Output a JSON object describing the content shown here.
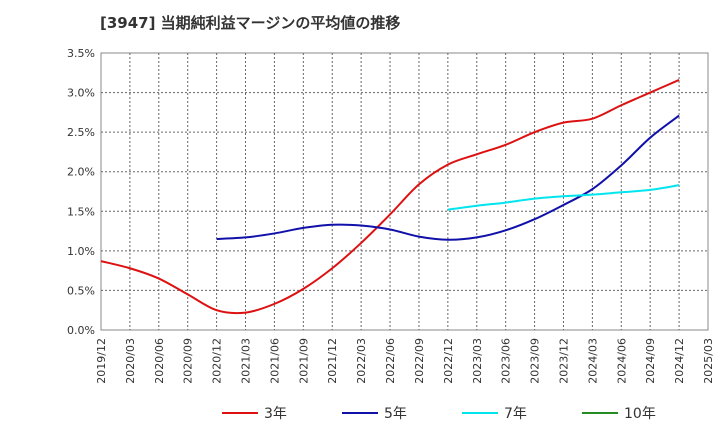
{
  "chart_data": {
    "type": "line",
    "title": "[3947]  当期純利益マージンの平均値の推移",
    "xlabel": "",
    "ylabel": "",
    "ylim": [
      0,
      3.5
    ],
    "y_ticks": [
      "0.0%",
      "0.5%",
      "1.0%",
      "1.5%",
      "2.0%",
      "2.5%",
      "3.0%",
      "3.5%"
    ],
    "x_ticks": [
      "2019/12",
      "2020/03",
      "2020/06",
      "2020/09",
      "2020/12",
      "2021/03",
      "2021/06",
      "2021/09",
      "2021/12",
      "2022/03",
      "2022/06",
      "2022/09",
      "2022/12",
      "2023/03",
      "2023/06",
      "2023/09",
      "2023/12",
      "2024/03",
      "2024/06",
      "2024/09",
      "2024/12",
      "2025/03"
    ],
    "grid": true,
    "legend_position": "bottom",
    "series": [
      {
        "name": "3年",
        "color": "#dd1111",
        "x": [
          "2019/12",
          "2020/03",
          "2020/06",
          "2020/09",
          "2020/12",
          "2021/03",
          "2021/06",
          "2021/09",
          "2021/12",
          "2022/03",
          "2022/06",
          "2022/09",
          "2022/12",
          "2023/03",
          "2023/06",
          "2023/09",
          "2023/12",
          "2024/03",
          "2024/06",
          "2024/09",
          "2024/12"
        ],
        "values": [
          0.87,
          0.78,
          0.65,
          0.45,
          0.25,
          0.22,
          0.33,
          0.52,
          0.78,
          1.1,
          1.46,
          1.84,
          2.09,
          2.22,
          2.34,
          2.5,
          2.62,
          2.67,
          2.84,
          3.0,
          3.16
        ]
      },
      {
        "name": "5年",
        "color": "#1111aa",
        "x": [
          "2020/12",
          "2021/03",
          "2021/06",
          "2021/09",
          "2021/12",
          "2022/03",
          "2022/06",
          "2022/09",
          "2022/12",
          "2023/03",
          "2023/06",
          "2023/09",
          "2023/12",
          "2024/03",
          "2024/06",
          "2024/09",
          "2024/12"
        ],
        "values": [
          1.15,
          1.17,
          1.22,
          1.29,
          1.33,
          1.32,
          1.27,
          1.18,
          1.14,
          1.17,
          1.26,
          1.4,
          1.58,
          1.78,
          2.08,
          2.43,
          2.71
        ]
      },
      {
        "name": "7年",
        "color": "#00e5ee",
        "x": [
          "2022/12",
          "2023/03",
          "2023/06",
          "2023/09",
          "2023/12",
          "2024/03",
          "2024/06",
          "2024/09",
          "2024/12"
        ],
        "values": [
          1.52,
          1.57,
          1.61,
          1.66,
          1.69,
          1.71,
          1.74,
          1.77,
          1.83
        ]
      },
      {
        "name": "10年",
        "color": "#228b22",
        "x": [],
        "values": []
      }
    ]
  }
}
